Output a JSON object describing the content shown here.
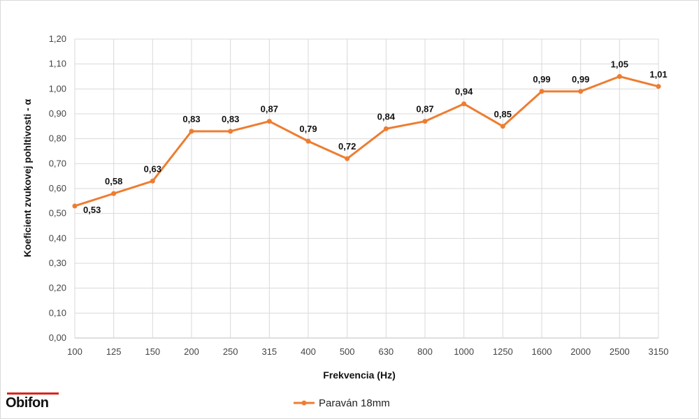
{
  "chart_data": {
    "type": "line",
    "categories": [
      "100",
      "125",
      "150",
      "200",
      "250",
      "315",
      "400",
      "500",
      "630",
      "800",
      "1000",
      "1250",
      "1600",
      "2000",
      "2500",
      "3150"
    ],
    "series": [
      {
        "name": "Paraván 18mm",
        "values": [
          0.53,
          0.58,
          0.63,
          0.83,
          0.83,
          0.87,
          0.79,
          0.72,
          0.84,
          0.87,
          0.94,
          0.85,
          0.99,
          0.99,
          1.05,
          1.01
        ],
        "labels": [
          "0,53",
          "0,58",
          "0,63",
          "0,83",
          "0,83",
          "0,87",
          "0,79",
          "0,72",
          "0,84",
          "0,87",
          "0,94",
          "0,85",
          "0,99",
          "0,99",
          "1,05",
          "1,01"
        ],
        "color": "#ed7d31"
      }
    ],
    "xlabel": "Frekvencia (Hz)",
    "ylabel": "Koeficient zvukovej pohltivosti - α",
    "ylim": [
      0,
      1.2
    ],
    "yticks": [
      "0,00",
      "0,10",
      "0,20",
      "0,30",
      "0,40",
      "0,50",
      "0,60",
      "0,70",
      "0,80",
      "0,90",
      "1,00",
      "1,10",
      "1,20"
    ],
    "grid": true,
    "legend_position": "bottom"
  },
  "logo": {
    "text": "Obifon",
    "bar_color": "#d9261c"
  }
}
